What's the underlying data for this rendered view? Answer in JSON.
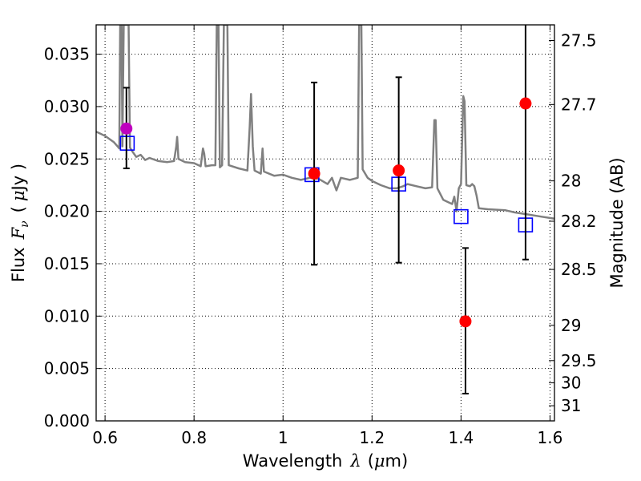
{
  "chart_data": {
    "type": "scatter",
    "x_range": [
      0.58,
      1.61
    ],
    "y_range": [
      0.0,
      0.0378
    ],
    "xlabel": {
      "prefix": "Wavelength",
      "symbol": "λ",
      "unit_open": "(",
      "unit_mu": "μ",
      "unit_rest": "m)"
    },
    "ylabel": {
      "prefix": "Flux",
      "symbol": "F",
      "subscript": "ν",
      "unit_open": "(",
      "unit_mu": "μ",
      "unit_rest": "Jy )"
    },
    "y2label": "Magnitude (AB)",
    "x_ticks": [
      {
        "value": 0.6,
        "label": "0.6"
      },
      {
        "value": 0.8,
        "label": "0.8"
      },
      {
        "value": 1.0,
        "label": "1"
      },
      {
        "value": 1.2,
        "label": "1.2"
      },
      {
        "value": 1.4,
        "label": "1.4"
      },
      {
        "value": 1.6,
        "label": "1.6"
      }
    ],
    "y_ticks": [
      {
        "value": 0.0,
        "label": "0.000"
      },
      {
        "value": 0.005,
        "label": "0.005"
      },
      {
        "value": 0.01,
        "label": "0.010"
      },
      {
        "value": 0.015,
        "label": "0.015"
      },
      {
        "value": 0.02,
        "label": "0.020"
      },
      {
        "value": 0.025,
        "label": "0.025"
      },
      {
        "value": 0.03,
        "label": "0.030"
      },
      {
        "value": 0.035,
        "label": "0.035"
      }
    ],
    "y2_ticks": [
      {
        "mag": 27.5,
        "label": "27.5"
      },
      {
        "mag": 27.7,
        "label": "27.7"
      },
      {
        "mag": 28.0,
        "label": "28"
      },
      {
        "mag": 28.2,
        "label": "28.2"
      },
      {
        "mag": 28.5,
        "label": "28.5"
      },
      {
        "mag": 29.0,
        "label": "29"
      },
      {
        "mag": 29.5,
        "label": "29.5"
      },
      {
        "mag": 30.0,
        "label": "30"
      },
      {
        "mag": 31.0,
        "label": "31"
      }
    ],
    "observed": [
      {
        "x": 0.648,
        "y": 0.0279,
        "err_lo": 0.0241,
        "err_hi": 0.0318,
        "color": "#bf00bf"
      },
      {
        "x": 1.07,
        "y": 0.0236,
        "err_lo": 0.0149,
        "err_hi": 0.0323,
        "color": "#ff0000"
      },
      {
        "x": 1.26,
        "y": 0.0239,
        "err_lo": 0.0151,
        "err_hi": 0.0328,
        "color": "#ff0000"
      },
      {
        "x": 1.41,
        "y": 0.0095,
        "err_lo": 0.0026,
        "err_hi": 0.0165,
        "color": "#ff0000"
      },
      {
        "x": 1.545,
        "y": 0.0303,
        "err_lo": 0.0154,
        "err_hi": 0.0378,
        "color": "#ff0000"
      }
    ],
    "model": [
      {
        "x": 0.65,
        "y": 0.0265
      },
      {
        "x": 1.065,
        "y": 0.0235
      },
      {
        "x": 1.26,
        "y": 0.0226
      },
      {
        "x": 1.4,
        "y": 0.0195
      },
      {
        "x": 1.545,
        "y": 0.0187
      }
    ],
    "spectrum_color": "#808080",
    "spectrum": [
      [
        0.58,
        0.0276
      ],
      [
        0.6,
        0.0272
      ],
      [
        0.62,
        0.0266
      ],
      [
        0.628,
        0.0262
      ],
      [
        0.632,
        0.026
      ],
      [
        0.634,
        0.0378
      ],
      [
        0.637,
        0.0378
      ],
      [
        0.639,
        0.0262
      ],
      [
        0.642,
        0.0378
      ],
      [
        0.646,
        0.0378
      ],
      [
        0.65,
        0.0378
      ],
      [
        0.653,
        0.0378
      ],
      [
        0.656,
        0.0261
      ],
      [
        0.66,
        0.0258
      ],
      [
        0.67,
        0.0252
      ],
      [
        0.68,
        0.0254
      ],
      [
        0.69,
        0.0249
      ],
      [
        0.7,
        0.0251
      ],
      [
        0.72,
        0.0248
      ],
      [
        0.74,
        0.0247
      ],
      [
        0.755,
        0.0248
      ],
      [
        0.76,
        0.0262
      ],
      [
        0.762,
        0.0271
      ],
      [
        0.765,
        0.025
      ],
      [
        0.78,
        0.0247
      ],
      [
        0.8,
        0.0246
      ],
      [
        0.815,
        0.0243
      ],
      [
        0.82,
        0.026
      ],
      [
        0.823,
        0.0255
      ],
      [
        0.826,
        0.0243
      ],
      [
        0.84,
        0.0244
      ],
      [
        0.848,
        0.0244
      ],
      [
        0.851,
        0.0378
      ],
      [
        0.855,
        0.0378
      ],
      [
        0.858,
        0.0242
      ],
      [
        0.863,
        0.0244
      ],
      [
        0.867,
        0.0378
      ],
      [
        0.872,
        0.0378
      ],
      [
        0.875,
        0.0378
      ],
      [
        0.878,
        0.0244
      ],
      [
        0.9,
        0.0241
      ],
      [
        0.92,
        0.0239
      ],
      [
        0.925,
        0.028
      ],
      [
        0.928,
        0.0312
      ],
      [
        0.932,
        0.0262
      ],
      [
        0.936,
        0.0239
      ],
      [
        0.95,
        0.0236
      ],
      [
        0.954,
        0.026
      ],
      [
        0.957,
        0.0238
      ],
      [
        0.98,
        0.0234
      ],
      [
        1.0,
        0.0235
      ],
      [
        1.02,
        0.0232
      ],
      [
        1.04,
        0.023
      ],
      [
        1.06,
        0.0232
      ],
      [
        1.08,
        0.0231
      ],
      [
        1.1,
        0.0226
      ],
      [
        1.11,
        0.0232
      ],
      [
        1.12,
        0.022
      ],
      [
        1.13,
        0.0232
      ],
      [
        1.15,
        0.023
      ],
      [
        1.168,
        0.0232
      ],
      [
        1.171,
        0.0378
      ],
      [
        1.176,
        0.0378
      ],
      [
        1.179,
        0.024
      ],
      [
        1.19,
        0.0232
      ],
      [
        1.2,
        0.0229
      ],
      [
        1.22,
        0.0225
      ],
      [
        1.24,
        0.0222
      ],
      [
        1.255,
        0.0222
      ],
      [
        1.27,
        0.0224
      ],
      [
        1.28,
        0.0226
      ],
      [
        1.3,
        0.0224
      ],
      [
        1.32,
        0.0222
      ],
      [
        1.335,
        0.0223
      ],
      [
        1.34,
        0.0287
      ],
      [
        1.343,
        0.0287
      ],
      [
        1.347,
        0.0222
      ],
      [
        1.36,
        0.0211
      ],
      [
        1.37,
        0.0209
      ],
      [
        1.38,
        0.0207
      ],
      [
        1.385,
        0.0214
      ],
      [
        1.39,
        0.02
      ],
      [
        1.395,
        0.0222
      ],
      [
        1.4,
        0.0226
      ],
      [
        1.405,
        0.031
      ],
      [
        1.408,
        0.0305
      ],
      [
        1.412,
        0.0225
      ],
      [
        1.42,
        0.0224
      ],
      [
        1.425,
        0.0226
      ],
      [
        1.43,
        0.0224
      ],
      [
        1.435,
        0.0215
      ],
      [
        1.44,
        0.0203
      ],
      [
        1.46,
        0.0202
      ],
      [
        1.5,
        0.0201
      ],
      [
        1.52,
        0.0199
      ],
      [
        1.55,
        0.0197
      ],
      [
        1.58,
        0.0195
      ],
      [
        1.61,
        0.0193
      ]
    ]
  }
}
